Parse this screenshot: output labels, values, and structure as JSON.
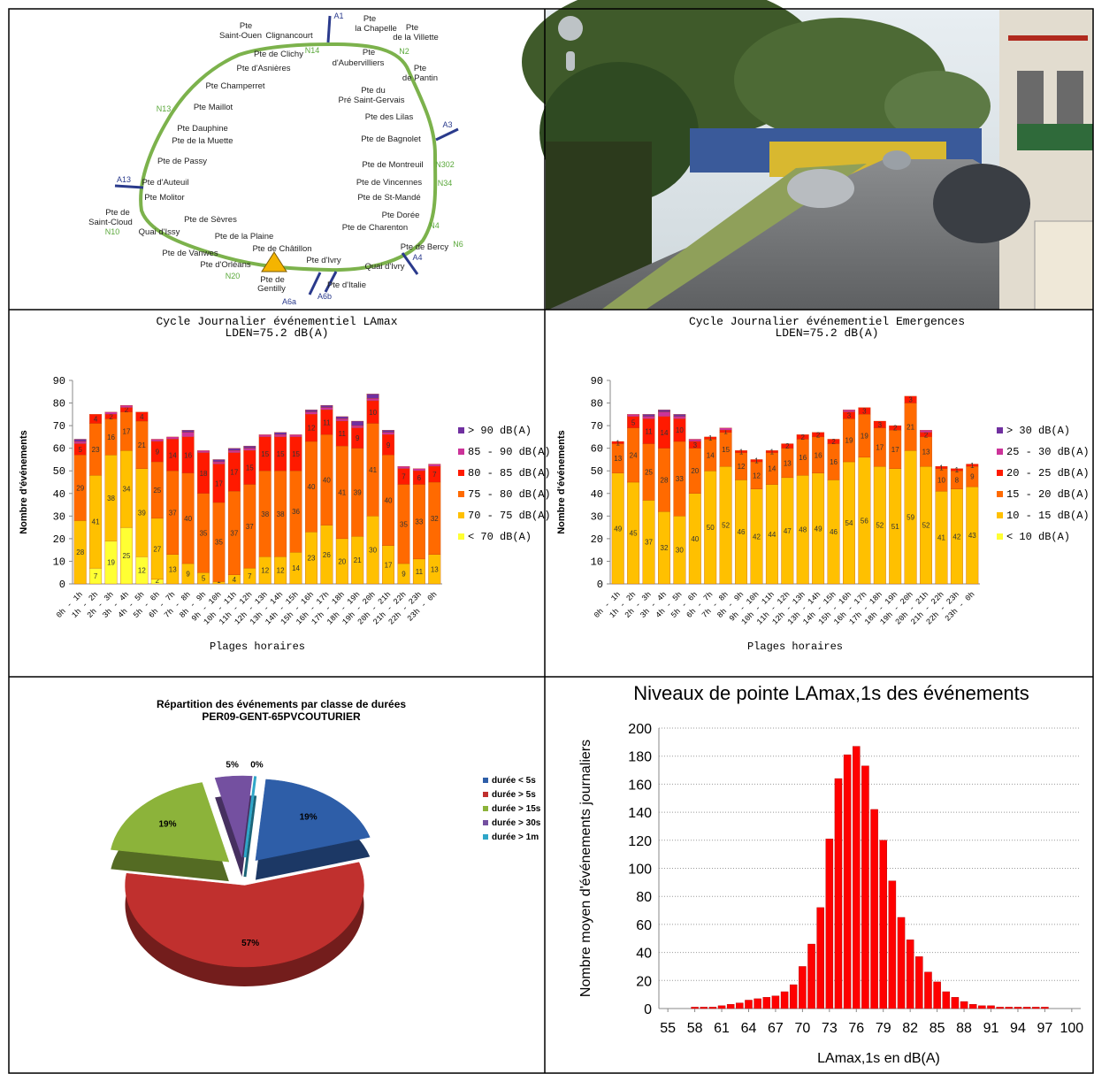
{
  "map": {
    "labels": [
      "A1",
      "Pte",
      "Saint-Ouen",
      "Clignancourt",
      "Pte",
      "la Chapelle",
      "Pte",
      "de la Villette",
      "N14",
      "N2",
      "Pte de Clichy",
      "Pte d'Asnières",
      "Pte",
      "d'Aubervilliers",
      "Pte",
      "de Pantin",
      "Pte Champerret",
      "Pte du",
      "Pré Saint-Gervais",
      "N13",
      "Pte Maillot",
      "Pte des Lilas",
      "A3",
      "Pte Dauphine",
      "Pte de la Muette",
      "Pte de Bagnolet",
      "Pte de Passy",
      "Pte de Montreuil",
      "N302",
      "A13",
      "Pte d'Auteuil",
      "Pte de Vincennes",
      "N34",
      "Pte Molitor",
      "Pte de St-Mandé",
      "Pte de",
      "Saint-Cloud",
      "Pte de Sèvres",
      "Pte Dorée",
      "Pte de Charenton",
      "N4",
      "N10",
      "Quai d'Issy",
      "Pte de la Plaine",
      "Pte de Châtillon",
      "Pte de Bercy",
      "N6",
      "Pte de Vanwes",
      "Pte d'Ivry",
      "A4",
      "Pte d'Orléans",
      "Quai d'Ivry",
      "N20",
      "Pte de",
      "Gentilly",
      "Pte d'Italie",
      "A6a",
      "A6b"
    ]
  },
  "chart_data": [
    {
      "type": "bar",
      "stacked": true,
      "title": "Cycle Journalier événementiel LAmax",
      "subtitle": "LDEN=75.2 dB(A)",
      "y_label": "Nombre d'événements",
      "x_label": "Plages horaires",
      "categories": [
        "0h - 1h",
        "1h - 2h",
        "2h - 3h",
        "3h - 4h",
        "4h - 5h",
        "5h - 6h",
        "6h - 7h",
        "7h - 8h",
        "8h - 9h",
        "9h - 10h",
        "10h - 11h",
        "11h - 12h",
        "12h - 13h",
        "13h - 14h",
        "14h - 15h",
        "15h - 16h",
        "16h - 17h",
        "17h - 18h",
        "18h - 19h",
        "19h - 20h",
        "20h - 21h",
        "21h - 22h",
        "22h - 23h",
        "23h - 0h"
      ],
      "ylim": [
        0,
        90
      ],
      "yticks": [
        0,
        10,
        20,
        30,
        40,
        50,
        60,
        70,
        80,
        90
      ],
      "series": [
        {
          "name": "< 70 dB(A)",
          "color": "#ffff33",
          "data_labels": true,
          "values": [
            0,
            7,
            19,
            25,
            12,
            2,
            0,
            0,
            0,
            0,
            0,
            0,
            0,
            0,
            0,
            0,
            0,
            0,
            0,
            0,
            0,
            0,
            0,
            0
          ]
        },
        {
          "name": "70 - 75 dB(A)",
          "color": "#ffc000",
          "data_labels": true,
          "values": [
            28,
            41,
            38,
            34,
            39,
            27,
            13,
            9,
            5,
            1,
            4,
            7,
            12,
            12,
            14,
            23,
            26,
            20,
            21,
            30,
            17,
            9,
            11,
            13
          ]
        },
        {
          "name": "75 - 80 dB(A)",
          "color": "#ff6a00",
          "data_labels": true,
          "values": [
            29,
            23,
            16,
            17,
            21,
            25,
            37,
            40,
            35,
            35,
            37,
            37,
            38,
            38,
            36,
            40,
            40,
            41,
            39,
            41,
            40,
            35,
            33,
            32
          ]
        },
        {
          "name": "80 - 85 dB(A)",
          "color": "#ff1a00",
          "data_labels": true,
          "values": [
            5,
            4,
            2,
            2,
            4,
            9,
            14,
            16,
            18,
            17,
            17,
            15,
            15,
            15,
            15,
            12,
            11,
            11,
            9,
            10,
            9,
            7,
            6,
            7
          ]
        },
        {
          "name": "85 - 90 dB(A)",
          "color": "#cc3399",
          "data_labels": false,
          "values": [
            1,
            0,
            1,
            1,
            0,
            1,
            1,
            2,
            1,
            1,
            1,
            1,
            1,
            1,
            1,
            1,
            1,
            1,
            1,
            1,
            1,
            1,
            1,
            1
          ]
        },
        {
          "name": "> 90 dB(A)",
          "color": "#7030a0",
          "data_labels": false,
          "values": [
            1,
            0,
            0,
            0,
            0,
            0,
            0,
            1,
            0,
            1,
            1,
            1,
            0,
            1,
            0,
            1,
            1,
            1,
            2,
            2,
            1,
            0,
            0,
            0
          ]
        }
      ]
    },
    {
      "type": "bar",
      "stacked": true,
      "title": "Cycle Journalier événementiel Emergences",
      "subtitle": "LDEN=75.2 dB(A)",
      "y_label": "Nombre d'événements",
      "x_label": "Plages horaires",
      "categories": [
        "0h - 1h",
        "1h - 2h",
        "2h - 3h",
        "3h - 4h",
        "4h - 5h",
        "5h - 6h",
        "6h - 7h",
        "7h - 8h",
        "8h - 9h",
        "9h - 10h",
        "10h - 11h",
        "11h - 12h",
        "12h - 13h",
        "13h - 14h",
        "14h - 15h",
        "15h - 16h",
        "16h - 17h",
        "17h - 18h",
        "18h - 19h",
        "19h - 20h",
        "20h - 21h",
        "21h - 22h",
        "22h - 23h",
        "23h - 0h"
      ],
      "ylim": [
        0,
        90
      ],
      "yticks": [
        0,
        10,
        20,
        30,
        40,
        50,
        60,
        70,
        80,
        90
      ],
      "series": [
        {
          "name": "< 10 dB(A)",
          "color": "#ffff33",
          "data_labels": false,
          "values": [
            0,
            0,
            0,
            0,
            0,
            0,
            0,
            0,
            0,
            0,
            0,
            0,
            0,
            0,
            0,
            0,
            0,
            0,
            0,
            0,
            0,
            0,
            0,
            0
          ]
        },
        {
          "name": "10 - 15 dB(A)",
          "color": "#ffc000",
          "data_labels": true,
          "values": [
            49,
            45,
            37,
            32,
            30,
            40,
            50,
            52,
            46,
            42,
            44,
            47,
            48,
            49,
            46,
            54,
            56,
            52,
            51,
            59,
            52,
            41,
            42,
            43
          ]
        },
        {
          "name": "15 - 20 dB(A)",
          "color": "#ff6a00",
          "data_labels": true,
          "values": [
            13,
            24,
            25,
            28,
            33,
            20,
            14,
            15,
            12,
            12,
            14,
            13,
            16,
            16,
            16,
            19,
            19,
            17,
            17,
            21,
            13,
            10,
            8,
            9
          ]
        },
        {
          "name": "20 - 25 dB(A)",
          "color": "#ff1a00",
          "data_labels": true,
          "values": [
            1,
            5,
            11,
            14,
            10,
            3,
            1,
            1,
            1,
            1,
            1,
            2,
            2,
            2,
            2,
            3,
            3,
            3,
            2,
            3,
            2,
            1,
            1,
            1
          ]
        },
        {
          "name": "25 - 30 dB(A)",
          "color": "#cc3399",
          "data_labels": false,
          "values": [
            0,
            1,
            1,
            2,
            1,
            1,
            0,
            1,
            0,
            0,
            0,
            0,
            0,
            0,
            0,
            1,
            0,
            0,
            0,
            0,
            1,
            0,
            0,
            0
          ]
        },
        {
          "name": "> 30 dB(A)",
          "color": "#7030a0",
          "data_labels": false,
          "values": [
            0,
            0,
            1,
            1,
            1,
            0,
            0,
            0,
            0,
            0,
            0,
            0,
            0,
            0,
            0,
            0,
            0,
            0,
            0,
            0,
            0,
            0,
            0,
            0
          ]
        }
      ]
    },
    {
      "type": "pie",
      "title": "Répartition des événements par classe de durées",
      "subtitle": "PER09-GENT-65PVCOUTURIER",
      "categories": [
        "durée < 5s",
        "durée > 5s",
        "durée > 15s",
        "durée > 30s",
        "durée > 1m"
      ],
      "values": [
        19,
        57,
        19,
        5,
        0
      ],
      "value_labels": [
        "19%",
        "57%",
        "19%",
        "5%",
        "0%"
      ],
      "colors": [
        "#2e5ea8",
        "#c0302e",
        "#8cb33a",
        "#7450a0",
        "#2fa6c8"
      ]
    },
    {
      "type": "bar",
      "title": "Niveaux de pointe LAmax,1s des événements",
      "y_label": "Nombre moyen d'événements journaliers",
      "x_label": "LAmax,1s en dB(A)",
      "x": [
        55,
        56,
        57,
        58,
        59,
        60,
        61,
        62,
        63,
        64,
        65,
        66,
        67,
        68,
        69,
        70,
        71,
        72,
        73,
        74,
        75,
        76,
        77,
        78,
        79,
        80,
        81,
        82,
        83,
        84,
        85,
        86,
        87,
        88,
        89,
        90,
        91,
        92,
        93,
        94,
        95,
        96,
        97,
        98,
        99,
        100
      ],
      "values": [
        0,
        0,
        0,
        1,
        1,
        1,
        2,
        3,
        4,
        6,
        7,
        8,
        9,
        12,
        17,
        30,
        46,
        72,
        121,
        164,
        181,
        187,
        173,
        142,
        120,
        91,
        65,
        49,
        37,
        26,
        19,
        12,
        8,
        5,
        3,
        2,
        2,
        1,
        1,
        1,
        1,
        1,
        1,
        0,
        0,
        0
      ],
      "color": "#ff0000",
      "xlim": [
        54,
        101
      ],
      "xticks": [
        55,
        58,
        61,
        64,
        67,
        70,
        73,
        76,
        79,
        82,
        85,
        88,
        91,
        94,
        97,
        100
      ],
      "ylim": [
        0,
        200
      ],
      "yticks": [
        0,
        20,
        40,
        60,
        80,
        100,
        120,
        140,
        160,
        180,
        200
      ],
      "grid": true
    }
  ]
}
